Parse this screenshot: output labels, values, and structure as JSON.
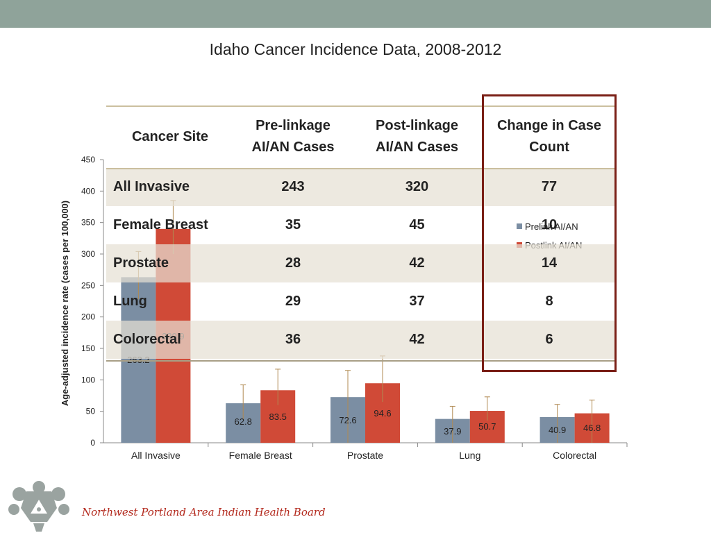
{
  "slide": {
    "title": "Idaho Cancer Incidence Data, 2008-2012",
    "footer_org": "Northwest Portland Area Indian Health Board",
    "colors": {
      "band": "#8fa39a",
      "prelink": "#7b8ea3",
      "postlink": "#d04a37",
      "accent": "#7a1f16"
    }
  },
  "table": {
    "headers": [
      "Cancer Site",
      "Pre-linkage\nAI/AN Cases",
      "Post-linkage\nAI/AN Cases",
      "Change in Case\nCount"
    ],
    "rows": [
      [
        "All Invasive",
        "243",
        "320",
        "77"
      ],
      [
        "Female Breast",
        "35",
        "45",
        "10"
      ],
      [
        "Prostate",
        "28",
        "42",
        "14"
      ],
      [
        "Lung",
        "29",
        "37",
        "8"
      ],
      [
        "Colorectal",
        "36",
        "42",
        "6"
      ]
    ]
  },
  "chart_data": {
    "type": "bar",
    "title": "",
    "xlabel": "",
    "ylabel": "Age-adjusted incidence rate (cases per 100,000)",
    "ylim": [
      0,
      450
    ],
    "yticks": [
      0,
      50,
      100,
      150,
      200,
      250,
      300,
      350,
      400,
      450
    ],
    "categories": [
      "All Invasive",
      "Female Breast",
      "Prostate",
      "Lung",
      "Colorectal"
    ],
    "series": [
      {
        "name": "Prelink AI/AN",
        "color": "#7b8ea3",
        "values": [
          263.2,
          62.8,
          72.6,
          37.9,
          40.9
        ],
        "error_high": [
          304,
          92,
          115,
          58,
          61
        ],
        "error_low": [
          228,
          38,
          0,
          0,
          0
        ]
      },
      {
        "name": "Postlink AI/AN",
        "color": "#d04a37",
        "values": [
          339.9,
          83.5,
          94.6,
          50.7,
          46.8
        ],
        "error_high": [
          385,
          117,
          138,
          73,
          68
        ],
        "error_low": [
          300,
          60,
          65,
          35,
          0
        ]
      }
    ],
    "data_labels": [
      "263.2",
      "62.8",
      "72.6",
      "37.9",
      "40.9",
      "339.9",
      "83.5",
      "94.6",
      "50.7",
      "46.8"
    ],
    "legend_position": "right",
    "grid": false
  }
}
